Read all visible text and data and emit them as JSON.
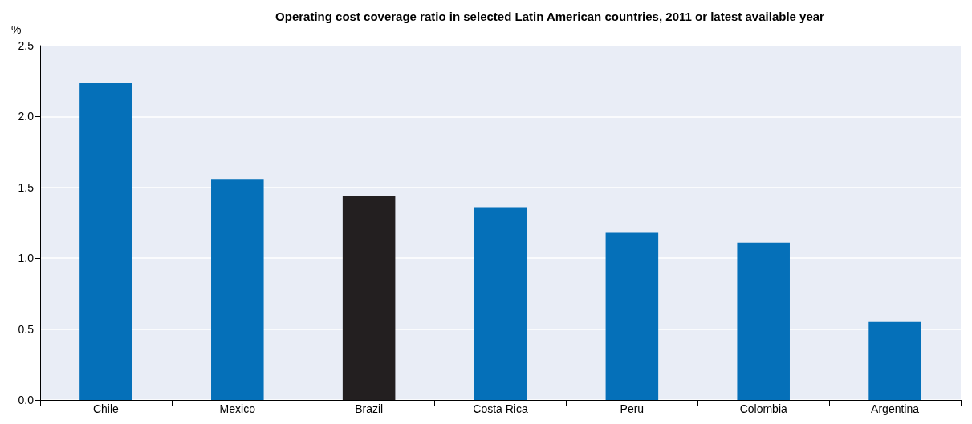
{
  "chart_data": {
    "type": "bar",
    "title": "Operating cost coverage ratio in selected Latin American countries, 2011 or latest available year",
    "ylabel": "%",
    "categories": [
      "Chile",
      "Mexico",
      "Brazil",
      "Costa Rica",
      "Peru",
      "Colombia",
      "Argentina"
    ],
    "values": [
      2.24,
      1.56,
      1.44,
      1.36,
      1.18,
      1.11,
      0.55
    ],
    "colors": [
      "#0570b9",
      "#0570b9",
      "#231f20",
      "#0570b9",
      "#0570b9",
      "#0570b9",
      "#0570b9"
    ],
    "ylim": [
      0,
      2.5
    ],
    "yticks": [
      {
        "value": 0,
        "label": "0.0"
      },
      0.5,
      {
        "value": 1,
        "label": "1.0"
      },
      1.5,
      {
        "value": 2,
        "label": "2.0"
      },
      2.5
    ],
    "grid": "y"
  }
}
